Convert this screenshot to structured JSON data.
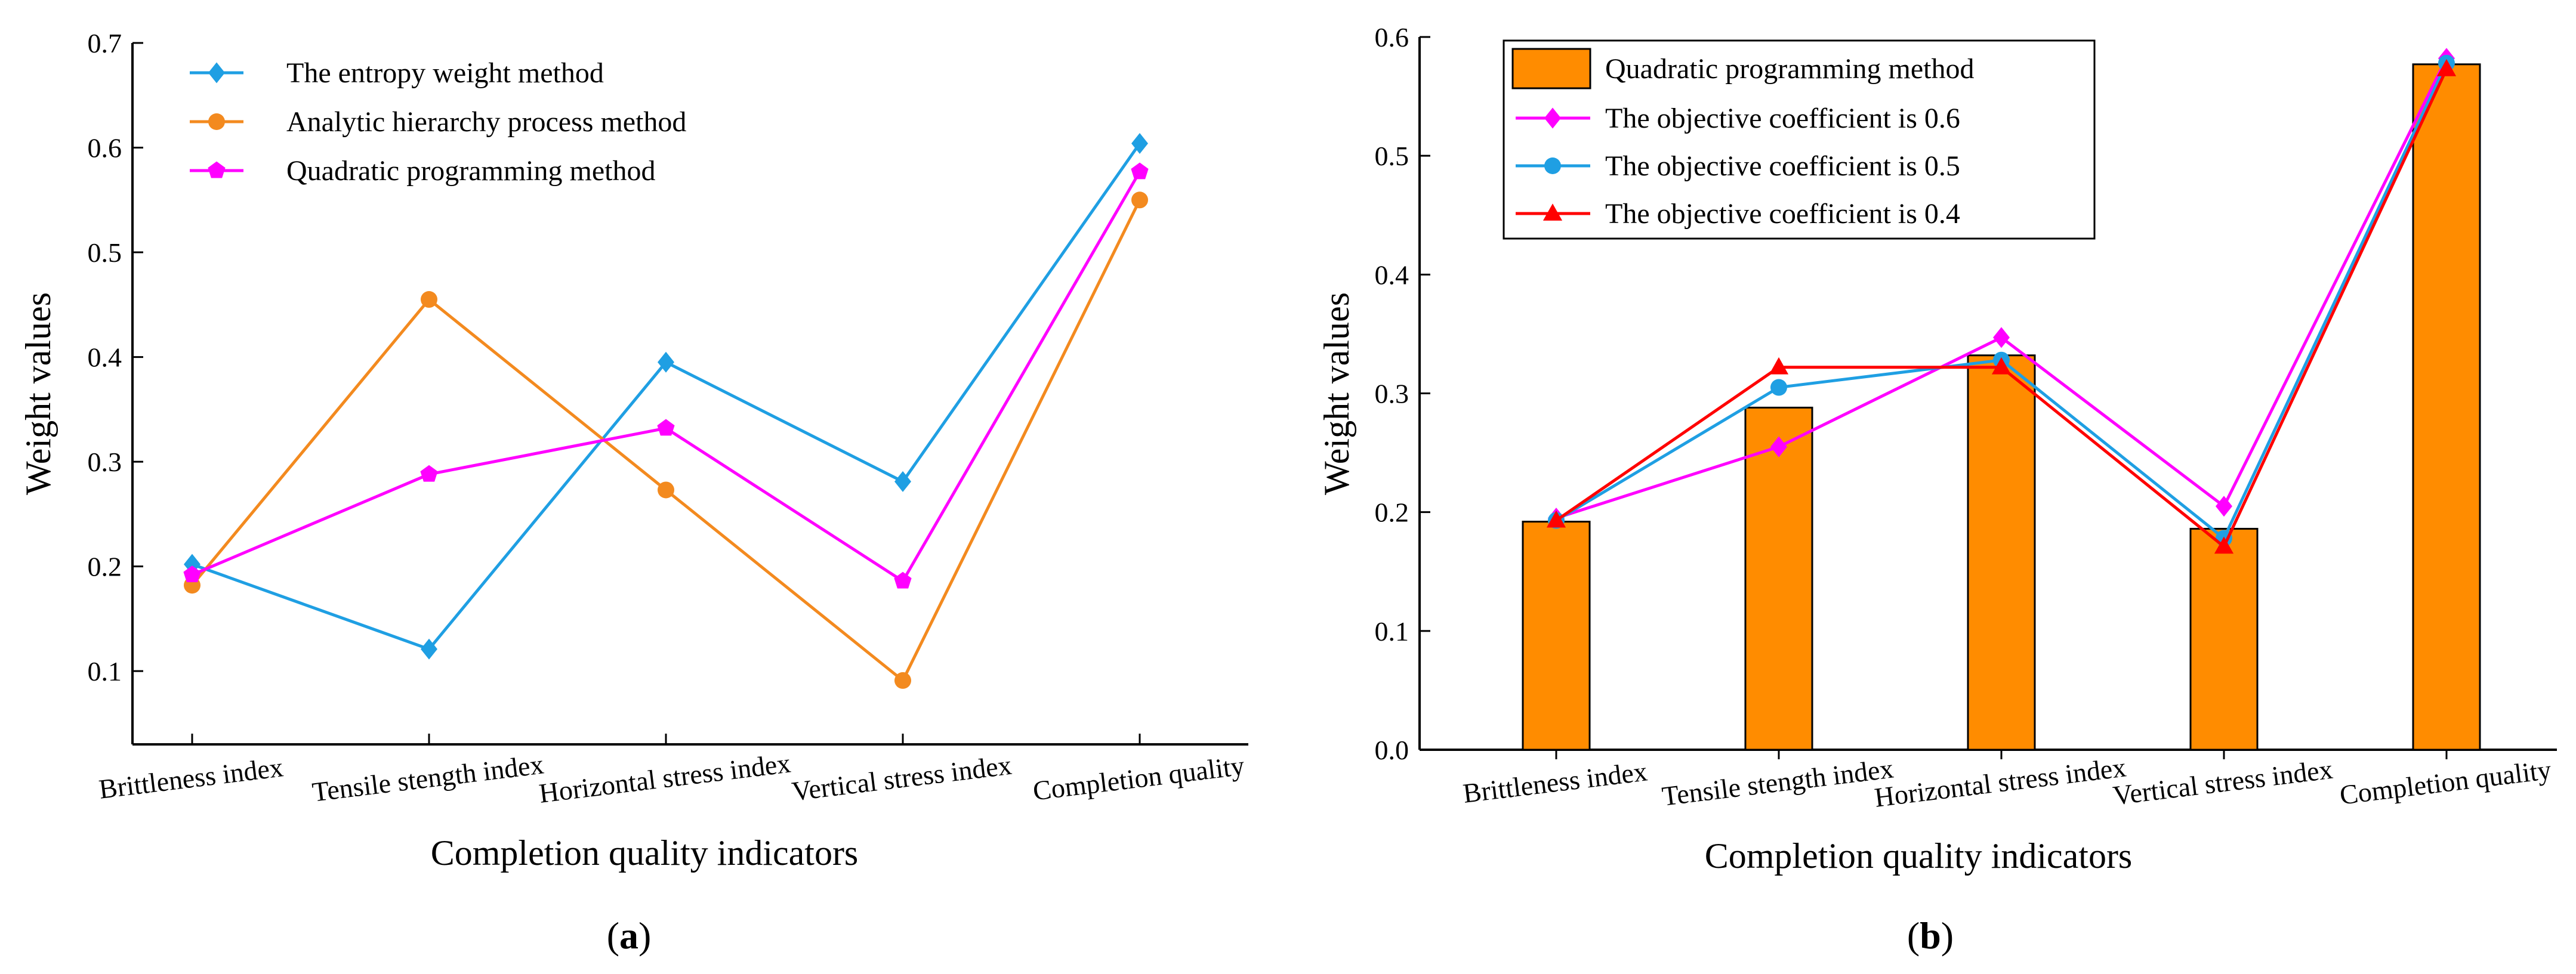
{
  "chart_data": [
    {
      "type": "line",
      "panel_label": "a",
      "xlabel": "Completion quality indicators",
      "ylabel": "Weight values",
      "categories": [
        "Brittleness index",
        "Tensile stength index",
        "Horizontal stress index",
        "Vertical stress index",
        "Completion quality"
      ],
      "ylim": [
        0.03,
        0.7
      ],
      "yticks": [
        "0.1",
        "0.2",
        "0.3",
        "0.4",
        "0.5",
        "0.6",
        "0.7"
      ],
      "legend_position": "top-left",
      "series": [
        {
          "name": "The entropy weight method",
          "marker": "diamond",
          "color": "#1f9fe3",
          "values": [
            0.202,
            0.121,
            0.395,
            0.281,
            0.604
          ]
        },
        {
          "name": "Analytic hierarchy process method",
          "marker": "circle",
          "color": "#f38a1f",
          "values": [
            0.182,
            0.455,
            0.273,
            0.091,
            0.55
          ]
        },
        {
          "name": "Quadratic programming method",
          "marker": "pentagon",
          "color": "#ff00ff",
          "values": [
            0.192,
            0.288,
            0.332,
            0.186,
            0.577
          ]
        }
      ]
    },
    {
      "type": "bar",
      "panel_label": "b",
      "xlabel": "Completion quality indicators",
      "ylabel": "Weight values",
      "categories": [
        "Brittleness index",
        "Tensile stength index",
        "Horizontal stress index",
        "Vertical stress index",
        "Completion quality"
      ],
      "ylim": [
        0.0,
        0.6
      ],
      "yticks": [
        "0.0",
        "0.1",
        "0.2",
        "0.3",
        "0.4",
        "0.5",
        "0.6"
      ],
      "legend_position": "top-left",
      "bars": {
        "name": "Quadratic programming method",
        "color": "#ff8c00",
        "values": [
          0.192,
          0.288,
          0.332,
          0.186,
          0.577
        ]
      },
      "series": [
        {
          "name": "The objective coefficient is 0.6",
          "marker": "diamond",
          "color": "#ff00ff",
          "values": [
            0.195,
            0.255,
            0.347,
            0.205,
            0.582
          ]
        },
        {
          "name": "The objective coefficient is 0.5",
          "marker": "circle",
          "color": "#1f9fe3",
          "values": [
            0.193,
            0.305,
            0.328,
            0.178,
            0.578
          ]
        },
        {
          "name": "The objective coefficient is 0.4",
          "marker": "triangle",
          "color": "#ff0000",
          "values": [
            0.193,
            0.322,
            0.322,
            0.171,
            0.573
          ]
        }
      ]
    }
  ]
}
